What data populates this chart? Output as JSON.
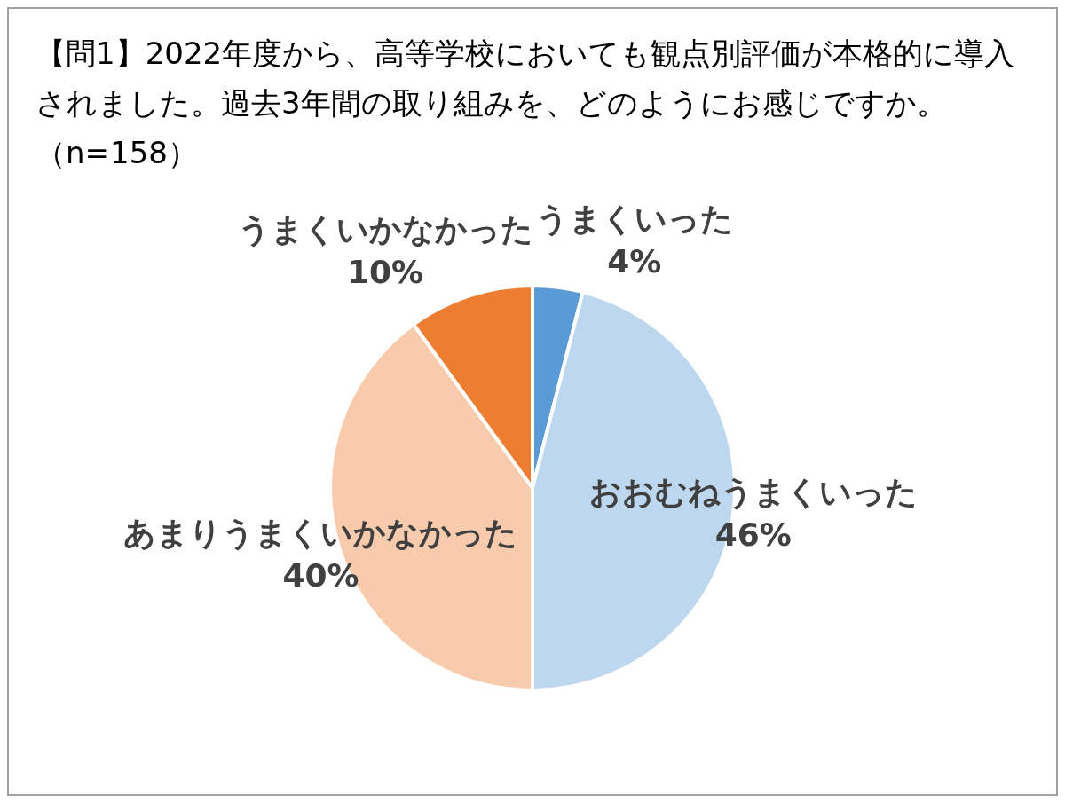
{
  "chart_data": {
    "type": "pie",
    "title": "【問1】2022年度から、高等学校においても観点別評価が本格的に導入されました。過去3年間の取り組みを、どのようにお感じですか。（n=158）",
    "categories": [
      "うまくいった",
      "おおむねうまくいった",
      "あまりうまくいかなかった",
      "うまくいかなかった"
    ],
    "values": [
      4,
      46,
      40,
      10
    ],
    "value_labels": [
      "4%",
      "46%",
      "40%",
      "10%"
    ],
    "colors": [
      "#5b9bd5",
      "#bdd7ee",
      "#f8cbad",
      "#ed7d31"
    ],
    "legend": false
  }
}
